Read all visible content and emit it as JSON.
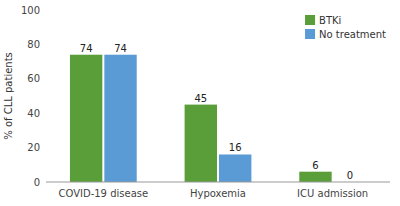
{
  "chart_data": {
    "type": "bar",
    "categories": [
      "COVID-19 disease",
      "Hypoxemia",
      "ICU admission"
    ],
    "series": [
      {
        "name": "BTKi",
        "color": "#5a9e3a",
        "values": [
          74,
          45,
          6
        ]
      },
      {
        "name": "No treatment",
        "color": "#5b9bd5",
        "values": [
          74,
          16,
          0
        ]
      }
    ],
    "y_label": "% of CLL patients",
    "ylim": [
      0,
      100
    ],
    "yticks": [
      0,
      20,
      40,
      60,
      80,
      100
    ],
    "grid": false,
    "legend": "upper right",
    "data_labels": true
  }
}
